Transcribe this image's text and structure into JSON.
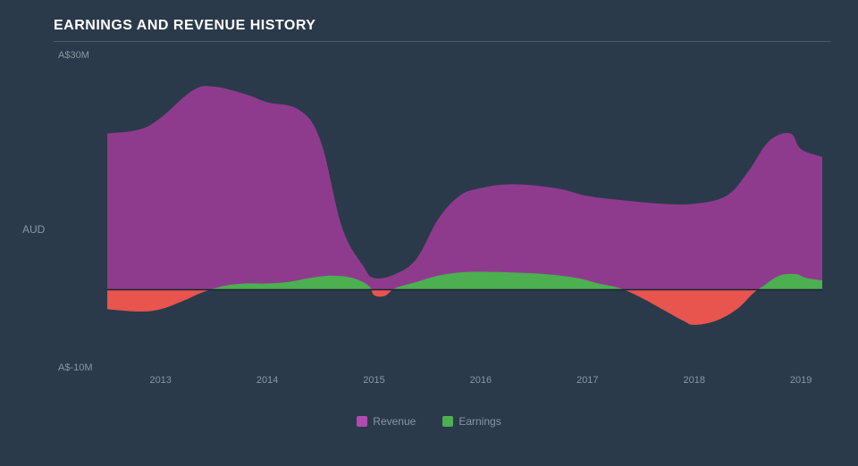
{
  "chart": {
    "type": "area",
    "title": "EARNINGS AND REVENUE HISTORY",
    "background_color": "#2a3a4a",
    "grid_color": "#4a5a6a",
    "text_color": "#8a96a3",
    "title_color": "#ffffff",
    "title_fontsize": 16,
    "label_fontsize": 11,
    "y_axis": {
      "label": "AUD",
      "min": -10,
      "max": 30,
      "ticks": [
        {
          "value": 30,
          "label": "A$30M"
        },
        {
          "value": -10,
          "label": "A$-10M"
        }
      ]
    },
    "x_axis": {
      "min": 2012.5,
      "max": 2019.2,
      "ticks": [
        2013,
        2014,
        2015,
        2016,
        2017,
        2018,
        2019
      ]
    },
    "zero_line_color": "#1a2530",
    "series": [
      {
        "name": "Revenue",
        "color": "#8e3b8e",
        "legend_color": "#b04bb0",
        "data": [
          [
            2012.5,
            20
          ],
          [
            2012.8,
            20.5
          ],
          [
            2013.0,
            22
          ],
          [
            2013.3,
            25.5
          ],
          [
            2013.5,
            26
          ],
          [
            2013.8,
            25
          ],
          [
            2014.0,
            24
          ],
          [
            2014.3,
            23
          ],
          [
            2014.5,
            19
          ],
          [
            2014.7,
            8
          ],
          [
            2014.9,
            3
          ],
          [
            2015.0,
            1.5
          ],
          [
            2015.2,
            2
          ],
          [
            2015.4,
            4
          ],
          [
            2015.6,
            9
          ],
          [
            2015.8,
            12
          ],
          [
            2016.0,
            13
          ],
          [
            2016.3,
            13.5
          ],
          [
            2016.7,
            13
          ],
          [
            2017.0,
            12
          ],
          [
            2017.3,
            11.5
          ],
          [
            2017.7,
            11
          ],
          [
            2018.0,
            11
          ],
          [
            2018.3,
            12
          ],
          [
            2018.5,
            15
          ],
          [
            2018.7,
            19
          ],
          [
            2018.9,
            20
          ],
          [
            2019.0,
            18
          ],
          [
            2019.2,
            17
          ]
        ]
      },
      {
        "name": "Earnings",
        "color_pos": "#4caf50",
        "color_neg": "#e8544e",
        "legend_color": "#4caf50",
        "data": [
          [
            2012.5,
            -2.5
          ],
          [
            2012.8,
            -2.8
          ],
          [
            2013.0,
            -2.5
          ],
          [
            2013.2,
            -1.5
          ],
          [
            2013.4,
            -0.3
          ],
          [
            2013.6,
            0.5
          ],
          [
            2013.8,
            0.8
          ],
          [
            2014.0,
            0.8
          ],
          [
            2014.2,
            1.0
          ],
          [
            2014.4,
            1.5
          ],
          [
            2014.6,
            1.8
          ],
          [
            2014.8,
            1.5
          ],
          [
            2014.95,
            0.5
          ],
          [
            2015.0,
            -0.7
          ],
          [
            2015.1,
            -0.8
          ],
          [
            2015.2,
            0.2
          ],
          [
            2015.4,
            1.0
          ],
          [
            2015.6,
            1.8
          ],
          [
            2015.8,
            2.2
          ],
          [
            2016.0,
            2.3
          ],
          [
            2016.3,
            2.2
          ],
          [
            2016.6,
            2.0
          ],
          [
            2016.9,
            1.5
          ],
          [
            2017.1,
            0.8
          ],
          [
            2017.3,
            0.2
          ],
          [
            2017.5,
            -1.0
          ],
          [
            2017.7,
            -2.5
          ],
          [
            2017.9,
            -4.0
          ],
          [
            2018.0,
            -4.5
          ],
          [
            2018.2,
            -4.0
          ],
          [
            2018.4,
            -2.5
          ],
          [
            2018.55,
            -0.5
          ],
          [
            2018.65,
            0.5
          ],
          [
            2018.8,
            1.8
          ],
          [
            2018.95,
            2.0
          ],
          [
            2019.05,
            1.5
          ],
          [
            2019.2,
            1.2
          ]
        ]
      }
    ],
    "legend": [
      {
        "label": "Revenue",
        "color": "#b04bb0"
      },
      {
        "label": "Earnings",
        "color": "#4caf50"
      }
    ]
  }
}
